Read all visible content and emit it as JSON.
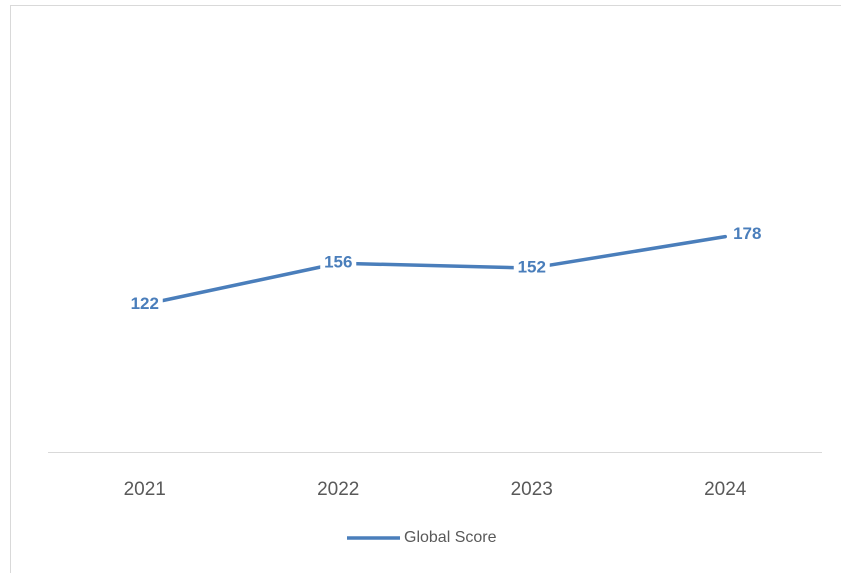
{
  "chart_data": {
    "type": "line",
    "categories": [
      "2021",
      "2022",
      "2023",
      "2024"
    ],
    "series": [
      {
        "name": "Global Score",
        "color": "#4a7ebb",
        "values": [
          122,
          156,
          152,
          178
        ]
      }
    ],
    "ylim": [
      0,
      200
    ]
  }
}
